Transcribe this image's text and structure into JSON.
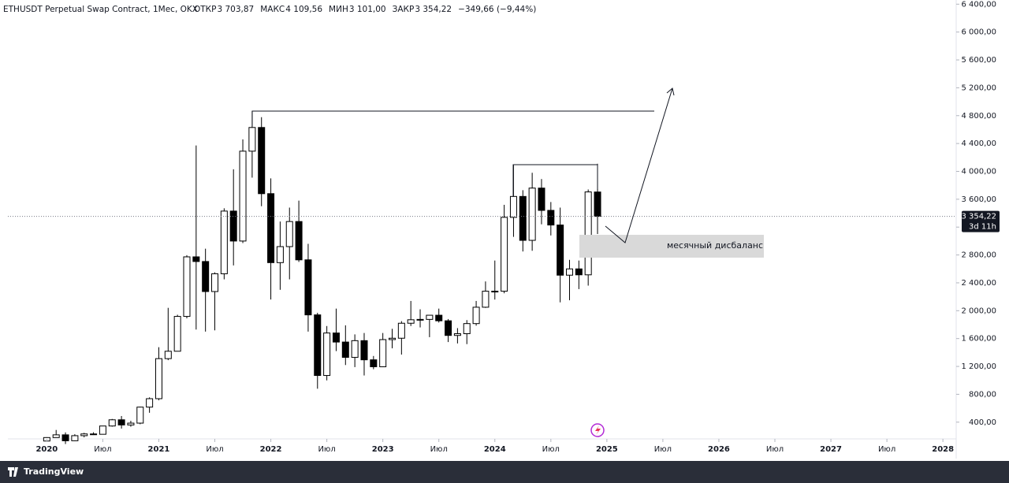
{
  "chart_data": {
    "type": "candlestick",
    "title": "ETHUSDT Perpetual Swap Contract, 1Мес, OKX",
    "ohlc_header": [
      "ОТКР",
      "3 703,87",
      "МАКС",
      "4 109,56",
      "МИН",
      "3 101,00",
      "ЗАКР",
      "3 354,22",
      "−349,66 (−9,44%)"
    ],
    "annotation": "месячный дисбаланс",
    "last_price_label": "3 354,22",
    "countdown": "3d 11h",
    "branding": "TradingView",
    "up_color": "#ffffff",
    "down_color": "#000000",
    "wick_color": "#000000",
    "x": [
      "2020-01",
      "2020-02",
      "2020-03",
      "2020-04",
      "2020-05",
      "2020-06",
      "2020-07",
      "2020-08",
      "2020-09",
      "2020-10",
      "2020-11",
      "2020-12",
      "2021-01",
      "2021-02",
      "2021-03",
      "2021-04",
      "2021-05",
      "2021-06",
      "2021-07",
      "2021-08",
      "2021-09",
      "2021-10",
      "2021-11",
      "2021-12",
      "2022-01",
      "2022-02",
      "2022-03",
      "2022-04",
      "2022-05",
      "2022-06",
      "2022-07",
      "2022-08",
      "2022-09",
      "2022-10",
      "2022-11",
      "2022-12",
      "2023-01",
      "2023-02",
      "2023-03",
      "2023-04",
      "2023-05",
      "2023-06",
      "2023-07",
      "2023-08",
      "2023-09",
      "2023-10",
      "2023-11",
      "2023-12",
      "2024-01",
      "2024-02",
      "2024-03",
      "2024-04",
      "2024-05",
      "2024-06",
      "2024-07",
      "2024-08",
      "2024-09",
      "2024-10",
      "2024-11",
      "2024-12"
    ],
    "open": [
      129,
      179,
      218,
      133,
      206,
      231,
      226,
      345,
      434,
      360,
      386,
      616,
      737,
      1312,
      1418,
      1918,
      2773,
      2706,
      2275,
      2530,
      3430,
      3000,
      4290,
      4630,
      3680,
      2690,
      2920,
      3280,
      2730,
      1940,
      1070,
      1680,
      1550,
      1330,
      1570,
      1295,
      1195,
      1585,
      1605,
      1820,
      1870,
      1875,
      1935,
      1855,
      1645,
      1670,
      1815,
      2050,
      2280,
      2280,
      3340,
      3640,
      3010,
      3760,
      3440,
      3230,
      2510,
      2600,
      2515,
      3703.87
    ],
    "high": [
      184,
      288,
      253,
      227,
      247,
      255,
      347,
      446,
      488,
      420,
      622,
      756,
      1476,
      2041,
      1942,
      2797,
      4372,
      2890,
      2550,
      3470,
      4030,
      4460,
      4868,
      4778,
      3900,
      3280,
      3480,
      3580,
      2960,
      1970,
      1780,
      2030,
      1790,
      1660,
      1680,
      1350,
      1680,
      1740,
      1850,
      2140,
      2020,
      1930,
      2030,
      1880,
      1750,
      1865,
      2140,
      2420,
      2720,
      3520,
      4090,
      3730,
      3980,
      3890,
      3560,
      3480,
      2730,
      2720,
      3740,
      4109.56
    ],
    "low": [
      127,
      179,
      86,
      130,
      182,
      216,
      224,
      335,
      308,
      334,
      370,
      535,
      714,
      1290,
      1420,
      1890,
      1730,
      1700,
      1718,
      2450,
      2650,
      2970,
      3910,
      3500,
      2160,
      2300,
      2450,
      2700,
      1700,
      880,
      1000,
      1420,
      1220,
      1190,
      1070,
      1160,
      1190,
      1460,
      1370,
      1780,
      1760,
      1620,
      1830,
      1550,
      1530,
      1520,
      1785,
      2040,
      2160,
      2250,
      3060,
      2850,
      2860,
      3240,
      3080,
      2120,
      2150,
      2310,
      2360,
      3101
    ],
    "close": [
      179,
      218,
      133,
      206,
      231,
      226,
      345,
      434,
      360,
      386,
      616,
      737,
      1312,
      1418,
      1918,
      2773,
      2706,
      2275,
      2530,
      3430,
      3000,
      4290,
      4630,
      3680,
      2690,
      2920,
      3280,
      2730,
      1940,
      1070,
      1680,
      1550,
      1330,
      1570,
      1295,
      1195,
      1585,
      1605,
      1820,
      1870,
      1875,
      1935,
      1855,
      1645,
      1670,
      1815,
      2050,
      2280,
      2280,
      3340,
      3640,
      3010,
      3760,
      3440,
      3230,
      2510,
      2600,
      2515,
      3705,
      3354.22
    ],
    "xlim": [
      "2019-09",
      "2028-02"
    ],
    "xticks": [
      {
        "value": "2020-01",
        "label": "2020"
      },
      {
        "value": "2020-07",
        "label": "Июл"
      },
      {
        "value": "2021-01",
        "label": "2021"
      },
      {
        "value": "2021-07",
        "label": "Июл"
      },
      {
        "value": "2022-01",
        "label": "2022"
      },
      {
        "value": "2022-07",
        "label": "Июл"
      },
      {
        "value": "2023-01",
        "label": "2023"
      },
      {
        "value": "2023-07",
        "label": "Июл"
      },
      {
        "value": "2024-01",
        "label": "2024"
      },
      {
        "value": "2024-07",
        "label": "Июл"
      },
      {
        "value": "2025-01",
        "label": "2025"
      },
      {
        "value": "2025-07",
        "label": "Июл"
      },
      {
        "value": "2026-01",
        "label": "2026"
      },
      {
        "value": "2026-07",
        "label": "Июл"
      },
      {
        "value": "2027-01",
        "label": "2027"
      },
      {
        "value": "2027-07",
        "label": "Июл"
      },
      {
        "value": "2028-01",
        "label": "2028"
      }
    ],
    "ylim": [
      160,
      6460
    ],
    "yticks": [
      {
        "value": 400,
        "label": "400,00"
      },
      {
        "value": 800,
        "label": "800,00"
      },
      {
        "value": 1200,
        "label": "1 200,00"
      },
      {
        "value": 1600,
        "label": "1 600,00"
      },
      {
        "value": 2000,
        "label": "2 000,00"
      },
      {
        "value": 2400,
        "label": "2 400,00"
      },
      {
        "value": 2800,
        "label": "2 800,00"
      },
      {
        "value": 3200,
        "label": "3 200,00"
      },
      {
        "value": 3600,
        "label": "3 600,00"
      },
      {
        "value": 4000,
        "label": "4 000,00"
      },
      {
        "value": 4400,
        "label": "4 400,00"
      },
      {
        "value": 4800,
        "label": "4 800,00"
      },
      {
        "value": 5200,
        "label": "5 200,00"
      },
      {
        "value": 5600,
        "label": "5 600,00"
      },
      {
        "value": 6000,
        "label": "6 000,00"
      },
      {
        "value": 6400,
        "label": "6 400,00"
      }
    ]
  }
}
